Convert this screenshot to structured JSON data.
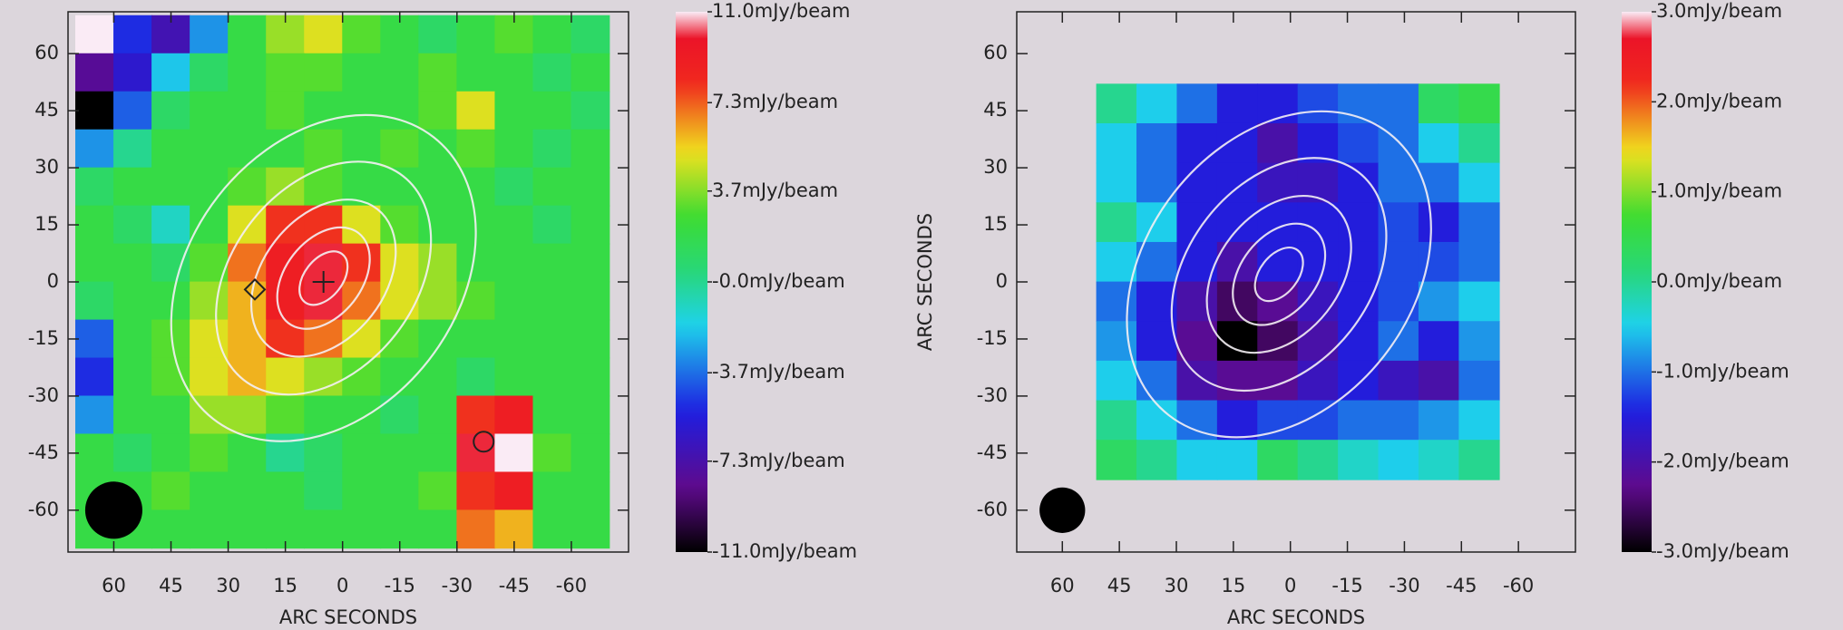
{
  "chart_data": [
    {
      "type": "heatmap",
      "xlabel": "ARC SECONDS",
      "xlim": [
        72,
        -75
      ],
      "ylim": [
        -71,
        71
      ],
      "xticks": [
        60,
        45,
        30,
        15,
        0,
        -15,
        -30,
        -45,
        -60
      ],
      "yticks": [
        60,
        45,
        30,
        15,
        0,
        -15,
        -30,
        -45,
        -60
      ],
      "map_xlim": [
        70,
        -70
      ],
      "map_ylim": [
        -70,
        70
      ],
      "z": [
        [
          11,
          -5,
          -7,
          -3,
          2,
          4,
          5,
          3,
          2,
          1,
          2,
          3,
          2,
          1
        ],
        [
          -8,
          -6,
          -2,
          1,
          2,
          3,
          3,
          2,
          2,
          3,
          2,
          2,
          1,
          2
        ],
        [
          -11,
          -4,
          1,
          2,
          2,
          3,
          2,
          2,
          2,
          3,
          5,
          2,
          2,
          1
        ],
        [
          -3,
          0,
          2,
          2,
          2,
          2,
          3,
          2,
          3,
          2,
          3,
          2,
          1,
          2
        ],
        [
          1,
          2,
          2,
          2,
          3,
          4,
          3,
          2,
          2,
          2,
          2,
          1,
          2,
          2
        ],
        [
          2,
          1,
          -1,
          2,
          5,
          8,
          8,
          5,
          3,
          2,
          2,
          2,
          1,
          2
        ],
        [
          2,
          2,
          1,
          3,
          7,
          9,
          10,
          8,
          5,
          4,
          2,
          2,
          2,
          2
        ],
        [
          1,
          2,
          2,
          4,
          6,
          9,
          10,
          7,
          5,
          4,
          3,
          2,
          2,
          2
        ],
        [
          -4,
          2,
          3,
          5,
          6,
          8,
          7,
          5,
          3,
          2,
          2,
          2,
          2,
          2
        ],
        [
          -5,
          2,
          3,
          5,
          6,
          5,
          4,
          3,
          2,
          2,
          1,
          2,
          2,
          2
        ],
        [
          -3,
          2,
          2,
          4,
          4,
          3,
          2,
          2,
          1,
          2,
          8,
          9,
          2,
          2
        ],
        [
          2,
          1,
          2,
          3,
          2,
          0,
          1,
          2,
          2,
          2,
          10,
          11,
          3,
          2
        ],
        [
          2,
          2,
          3,
          2,
          2,
          2,
          1,
          2,
          2,
          3,
          8,
          9,
          2,
          2
        ],
        [
          2,
          2,
          2,
          2,
          2,
          2,
          2,
          2,
          2,
          2,
          7,
          6,
          2,
          2
        ]
      ],
      "colorbar": {
        "lim": [
          -11,
          11
        ],
        "ticks": [
          {
            "value": 11,
            "label": "11.0mJy/beam"
          },
          {
            "value": 7.3,
            "label": "7.3mJy/beam"
          },
          {
            "value": 3.7,
            "label": "3.7mJy/beam"
          },
          {
            "value": 0,
            "label": "-0.0mJy/beam"
          },
          {
            "value": -3.7,
            "label": "-3.7mJy/beam"
          },
          {
            "value": -7.3,
            "label": "-7.3mJy/beam"
          },
          {
            "value": -11,
            "label": "-11.0mJy/beam"
          }
        ]
      }
    },
    {
      "type": "heatmap",
      "xlabel": "ARC SECONDS",
      "ylabel": "ARC SECONDS",
      "xlim": [
        72,
        -75
      ],
      "ylim": [
        -71,
        71
      ],
      "xticks": [
        60,
        45,
        30,
        15,
        0,
        -15,
        -30,
        -45,
        -60
      ],
      "yticks": [
        60,
        45,
        30,
        15,
        0,
        -15,
        -30,
        -45,
        -60
      ],
      "map_xlim": [
        51,
        -55
      ],
      "map_ylim": [
        -52,
        52
      ],
      "z": [
        [
          0,
          -0.5,
          -1,
          -1.5,
          -1.5,
          -1.2,
          -1,
          -1,
          0.3,
          0.5
        ],
        [
          -0.5,
          -1,
          -1.5,
          -1.5,
          -2,
          -1.5,
          -1.2,
          -1,
          -0.5,
          0
        ],
        [
          -0.5,
          -1,
          -1.5,
          -1.5,
          -1.8,
          -1.8,
          -1.5,
          -1,
          -1,
          -0.5
        ],
        [
          0,
          -0.5,
          -1.5,
          -1.5,
          -1.5,
          -1.5,
          -1.5,
          -1.2,
          -1.5,
          -1
        ],
        [
          -0.5,
          -1,
          -1.5,
          -2,
          -1.5,
          -1.5,
          -1.5,
          -1.2,
          -1.2,
          -1
        ],
        [
          -1,
          -1.5,
          -2,
          -2.5,
          -2.2,
          -1.8,
          -1.5,
          -1.2,
          -0.8,
          -0.5
        ],
        [
          -0.8,
          -1.5,
          -2.2,
          -3,
          -2.5,
          -2,
          -1.5,
          -1,
          -1.5,
          -0.8
        ],
        [
          -0.5,
          -1,
          -2,
          -2.2,
          -2.2,
          -1.8,
          -1.5,
          -1.8,
          -2,
          -1
        ],
        [
          0,
          -0.5,
          -1,
          -1.5,
          -1.2,
          -1.2,
          -1,
          -1,
          -0.8,
          -0.5
        ],
        [
          0.3,
          0,
          -0.5,
          -0.5,
          0.3,
          0,
          -0.3,
          -0.5,
          -0.3,
          0
        ]
      ],
      "colorbar": {
        "lim": [
          -3,
          3
        ],
        "ticks": [
          {
            "value": 3,
            "label": "3.0mJy/beam"
          },
          {
            "value": 2,
            "label": "2.0mJy/beam"
          },
          {
            "value": 1,
            "label": "1.0mJy/beam"
          },
          {
            "value": 0,
            "label": "0.0mJy/beam"
          },
          {
            "value": -1,
            "label": "-1.0mJy/beam"
          },
          {
            "value": -2,
            "label": "-2.0mJy/beam"
          },
          {
            "value": -3,
            "label": "-3.0mJy/beam"
          }
        ]
      }
    }
  ]
}
